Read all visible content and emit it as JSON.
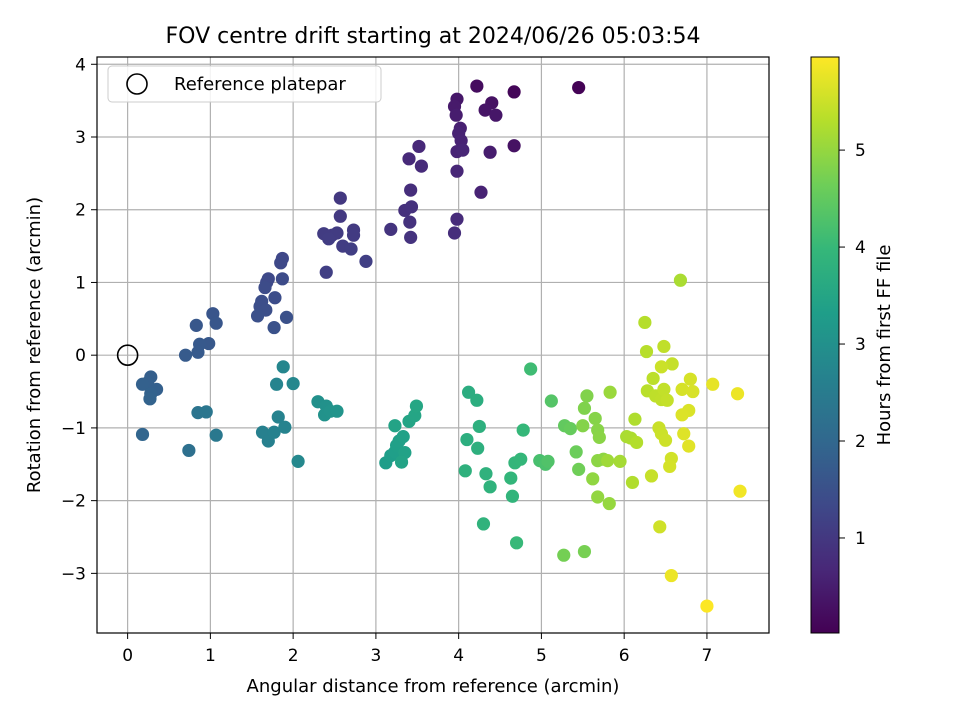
{
  "chart_data": {
    "type": "scatter",
    "title": "FOV centre drift starting at 2024/06/26 05:03:54",
    "xlabel": "Angular distance from reference (arcmin)",
    "ylabel": "Rotation from reference (arcmin)",
    "xlim": [
      -0.37,
      7.75
    ],
    "ylim": [
      -3.82,
      4.1
    ],
    "xticks": [
      0,
      1,
      2,
      3,
      4,
      5,
      6,
      7
    ],
    "yticks": [
      -3,
      -2,
      -1,
      0,
      1,
      2,
      3,
      4
    ],
    "grid": true,
    "legend": {
      "placement": "top-left",
      "entries": [
        {
          "label": "Reference platepar",
          "marker": "open-circle"
        }
      ]
    },
    "reference_point": {
      "x": 0,
      "y": 0
    },
    "colorbar": {
      "label": "Hours from first FF file",
      "colormap": "viridis",
      "range": [
        0.02,
        5.96
      ],
      "ticks": [
        1,
        2,
        3,
        4,
        5
      ]
    },
    "colormap_stops": [
      "#440154",
      "#482878",
      "#3e4989",
      "#31688e",
      "#26828e",
      "#1f9e89",
      "#35b779",
      "#6ece58",
      "#b5de2b",
      "#fde725"
    ],
    "series": [
      {
        "points": [
          [
            5.45,
            3.68,
            0.05
          ],
          [
            4.22,
            3.7,
            0.2
          ],
          [
            4.4,
            3.47,
            0.3
          ],
          [
            4.32,
            3.37,
            0.35
          ],
          [
            4.45,
            3.3,
            0.38
          ],
          [
            4.67,
            3.62,
            0.1
          ],
          [
            3.98,
            3.52,
            0.4
          ],
          [
            3.95,
            3.42,
            0.45
          ],
          [
            3.97,
            3.3,
            0.5
          ],
          [
            4.02,
            3.12,
            0.55
          ],
          [
            4.0,
            3.05,
            0.58
          ],
          [
            4.03,
            2.95,
            0.6
          ],
          [
            3.98,
            2.8,
            0.62
          ],
          [
            4.05,
            2.82,
            0.64
          ],
          [
            3.98,
            2.53,
            0.66
          ],
          [
            4.38,
            2.79,
            0.5
          ],
          [
            4.67,
            2.88,
            0.3
          ],
          [
            3.52,
            2.87,
            0.7
          ],
          [
            3.4,
            2.7,
            0.72
          ],
          [
            3.55,
            2.6,
            0.74
          ],
          [
            4.27,
            2.24,
            0.6
          ],
          [
            3.42,
            2.27,
            0.8
          ],
          [
            3.35,
            1.99,
            0.85
          ],
          [
            3.43,
            2.04,
            0.86
          ],
          [
            3.41,
            1.83,
            0.88
          ],
          [
            3.42,
            1.62,
            0.9
          ],
          [
            3.18,
            1.73,
            0.92
          ],
          [
            3.98,
            1.87,
            0.75
          ],
          [
            3.95,
            1.68,
            0.8
          ],
          [
            2.57,
            2.16,
            1.0
          ],
          [
            2.57,
            1.91,
            1.02
          ],
          [
            2.73,
            1.72,
            1.04
          ],
          [
            2.73,
            1.65,
            1.05
          ],
          [
            2.47,
            1.65,
            1.06
          ],
          [
            2.53,
            1.68,
            1.07
          ],
          [
            2.37,
            1.67,
            1.08
          ],
          [
            2.43,
            1.6,
            1.09
          ],
          [
            2.6,
            1.5,
            1.1
          ],
          [
            2.7,
            1.46,
            1.12
          ],
          [
            2.88,
            1.29,
            1.14
          ],
          [
            2.4,
            1.14,
            1.15
          ],
          [
            1.87,
            1.33,
            1.3
          ],
          [
            1.85,
            1.27,
            1.32
          ],
          [
            1.7,
            1.05,
            1.35
          ],
          [
            1.68,
            1.0,
            1.36
          ],
          [
            1.87,
            1.05,
            1.38
          ],
          [
            1.66,
            0.93,
            1.4
          ],
          [
            1.78,
            0.79,
            1.42
          ],
          [
            1.62,
            0.74,
            1.44
          ],
          [
            1.6,
            0.67,
            1.45
          ],
          [
            1.67,
            0.62,
            1.46
          ],
          [
            1.57,
            0.54,
            1.48
          ],
          [
            1.92,
            0.52,
            1.5
          ],
          [
            1.77,
            0.38,
            1.52
          ],
          [
            1.03,
            0.57,
            1.6
          ],
          [
            1.07,
            0.44,
            1.62
          ],
          [
            0.83,
            0.41,
            1.64
          ],
          [
            0.98,
            0.16,
            1.66
          ],
          [
            0.87,
            0.15,
            1.68
          ],
          [
            0.85,
            0.04,
            1.7
          ],
          [
            0.7,
            0.0,
            1.72
          ],
          [
            0.28,
            -0.3,
            1.8
          ],
          [
            0.24,
            -0.38,
            1.82
          ],
          [
            0.35,
            -0.47,
            1.84
          ],
          [
            0.18,
            -0.4,
            1.86
          ],
          [
            0.28,
            -0.53,
            1.88
          ],
          [
            0.27,
            -0.6,
            1.9
          ],
          [
            0.18,
            -1.09,
            1.95
          ],
          [
            0.74,
            -1.31,
            2.2
          ],
          [
            0.85,
            -0.79,
            2.3
          ],
          [
            0.95,
            -0.78,
            2.35
          ],
          [
            1.07,
            -1.1,
            2.4
          ],
          [
            1.63,
            -1.06,
            2.6
          ],
          [
            1.7,
            -1.18,
            2.62
          ],
          [
            1.77,
            -1.06,
            2.64
          ],
          [
            1.82,
            -0.85,
            2.66
          ],
          [
            1.9,
            -0.99,
            2.68
          ],
          [
            1.8,
            -0.4,
            2.7
          ],
          [
            1.88,
            -0.16,
            2.75
          ],
          [
            2.0,
            -0.39,
            2.78
          ],
          [
            2.06,
            -1.46,
            2.8
          ],
          [
            2.3,
            -0.64,
            3.0
          ],
          [
            2.4,
            -0.7,
            3.02
          ],
          [
            2.38,
            -0.82,
            3.04
          ],
          [
            2.45,
            -0.77,
            3.06
          ],
          [
            2.53,
            -0.77,
            3.08
          ],
          [
            3.12,
            -1.48,
            3.3
          ],
          [
            3.18,
            -1.38,
            3.32
          ],
          [
            3.23,
            -1.33,
            3.34
          ],
          [
            3.25,
            -1.24,
            3.36
          ],
          [
            3.28,
            -1.18,
            3.38
          ],
          [
            3.33,
            -1.12,
            3.4
          ],
          [
            3.35,
            -1.34,
            3.42
          ],
          [
            3.31,
            -1.47,
            3.44
          ],
          [
            3.23,
            -0.97,
            3.46
          ],
          [
            3.4,
            -0.91,
            3.48
          ],
          [
            3.47,
            -0.83,
            3.5
          ],
          [
            3.49,
            -0.7,
            3.52
          ],
          [
            4.12,
            -0.51,
            3.7
          ],
          [
            4.22,
            -0.62,
            3.72
          ],
          [
            4.1,
            -1.16,
            3.74
          ],
          [
            4.25,
            -0.98,
            3.76
          ],
          [
            4.23,
            -1.28,
            3.78
          ],
          [
            4.08,
            -1.59,
            3.8
          ],
          [
            4.33,
            -1.63,
            3.82
          ],
          [
            4.38,
            -1.81,
            3.84
          ],
          [
            4.3,
            -2.32,
            3.86
          ],
          [
            4.65,
            -1.94,
            3.9
          ],
          [
            4.63,
            -1.69,
            3.92
          ],
          [
            4.68,
            -1.48,
            3.94
          ],
          [
            4.75,
            -1.43,
            3.96
          ],
          [
            4.78,
            -1.03,
            3.98
          ],
          [
            4.7,
            -2.58,
            4.0
          ],
          [
            4.87,
            -0.19,
            4.1
          ],
          [
            4.98,
            -1.45,
            4.2
          ],
          [
            5.05,
            -1.5,
            4.25
          ],
          [
            5.08,
            -1.46,
            4.3
          ],
          [
            5.12,
            -0.63,
            4.35
          ],
          [
            5.28,
            -0.97,
            4.5
          ],
          [
            5.35,
            -1.01,
            4.55
          ],
          [
            5.42,
            -1.33,
            4.6
          ],
          [
            5.45,
            -1.57,
            4.65
          ],
          [
            5.27,
            -2.75,
            4.7
          ],
          [
            5.52,
            -2.7,
            4.72
          ],
          [
            5.52,
            -0.73,
            4.8
          ],
          [
            5.55,
            -0.56,
            4.82
          ],
          [
            5.5,
            -0.97,
            4.84
          ],
          [
            5.65,
            -0.87,
            4.86
          ],
          [
            5.68,
            -1.03,
            4.88
          ],
          [
            5.7,
            -1.13,
            4.9
          ],
          [
            5.68,
            -1.45,
            4.92
          ],
          [
            5.75,
            -1.43,
            4.94
          ],
          [
            5.62,
            -1.7,
            4.96
          ],
          [
            5.68,
            -1.95,
            4.98
          ],
          [
            5.82,
            -2.04,
            5.0
          ],
          [
            5.83,
            -0.51,
            5.05
          ],
          [
            5.8,
            -1.45,
            5.1
          ],
          [
            5.95,
            -1.46,
            5.15
          ],
          [
            6.03,
            -1.12,
            5.2
          ],
          [
            6.08,
            -1.14,
            5.22
          ],
          [
            6.13,
            -0.88,
            5.24
          ],
          [
            6.1,
            -1.75,
            5.26
          ],
          [
            6.15,
            -1.2,
            5.28
          ],
          [
            6.25,
            0.45,
            5.3
          ],
          [
            6.27,
            0.05,
            5.32
          ],
          [
            6.28,
            -0.49,
            5.34
          ],
          [
            6.35,
            -0.32,
            5.36
          ],
          [
            6.38,
            -0.56,
            5.38
          ],
          [
            6.45,
            -0.61,
            5.4
          ],
          [
            6.48,
            -0.47,
            5.42
          ],
          [
            6.52,
            -0.62,
            5.44
          ],
          [
            6.33,
            -1.66,
            5.46
          ],
          [
            6.42,
            -1.0,
            5.48
          ],
          [
            6.45,
            -1.08,
            5.5
          ],
          [
            6.5,
            -1.17,
            5.52
          ],
          [
            6.43,
            -2.36,
            5.54
          ],
          [
            6.57,
            -1.42,
            5.56
          ],
          [
            6.55,
            -1.53,
            5.58
          ],
          [
            6.48,
            0.12,
            5.4
          ],
          [
            6.58,
            -0.12,
            5.45
          ],
          [
            6.45,
            -0.16,
            5.5
          ],
          [
            6.68,
            1.03,
            5.2
          ],
          [
            6.7,
            -0.47,
            5.6
          ],
          [
            6.8,
            -0.33,
            5.6
          ],
          [
            6.83,
            -0.5,
            5.62
          ],
          [
            6.78,
            -0.76,
            5.64
          ],
          [
            6.7,
            -0.82,
            5.66
          ],
          [
            6.72,
            -1.08,
            5.68
          ],
          [
            6.78,
            -1.25,
            5.7
          ],
          [
            6.57,
            -3.03,
            5.8
          ],
          [
            7.07,
            -0.4,
            5.75
          ],
          [
            7.37,
            -0.53,
            5.8
          ],
          [
            7.4,
            -1.87,
            5.85
          ],
          [
            7.0,
            -3.45,
            5.95
          ]
        ]
      }
    ]
  }
}
